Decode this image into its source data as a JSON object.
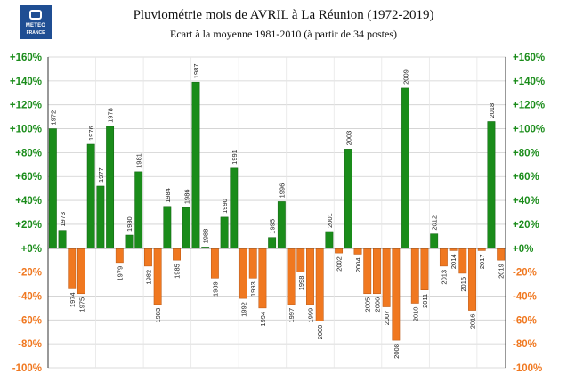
{
  "logo": {
    "line1": "METEO",
    "line2": "FRANCE"
  },
  "colors": {
    "positive": "#1a8c1a",
    "negative": "#f07820",
    "grid": "#cfcfcf",
    "left_axis_text": "#1a8c1a",
    "right_axis_text": "#f07820"
  },
  "chart_data": {
    "type": "bar",
    "title": "Pluviométrie mois de AVRIL à La Réunion (1972-2019)",
    "subtitle": "Ecart à la moyenne 1981-2010 (à partir de 34 postes)",
    "ylim": [
      -100,
      160
    ],
    "yticks": [
      "+160%",
      "+140%",
      "+120%",
      "+100%",
      "+80%",
      "+60%",
      "+40%",
      "+20%",
      "+0%",
      "-20%",
      "-40%",
      "-60%",
      "-80%",
      "-100%"
    ],
    "grid": true,
    "categories": [
      "1972",
      "1973",
      "1974",
      "1975",
      "1976",
      "1977",
      "1978",
      "1979",
      "1980",
      "1981",
      "1982",
      "1983",
      "1984",
      "1985",
      "1986",
      "1987",
      "1988",
      "1989",
      "1990",
      "1991",
      "1992",
      "1993",
      "1994",
      "1995",
      "1996",
      "1997",
      "1998",
      "1999",
      "2000",
      "2001",
      "2002",
      "2003",
      "2004",
      "2005",
      "2006",
      "2007",
      "2008",
      "2009",
      "2010",
      "2011",
      "2012",
      "2013",
      "2014",
      "2015",
      "2016",
      "2017",
      "2018",
      "2019"
    ],
    "values": [
      100,
      15,
      -34,
      -38,
      87,
      52,
      102,
      -12,
      11,
      64,
      -15,
      -47,
      35,
      -10,
      34,
      139,
      1,
      -25,
      26,
      67,
      -42,
      -25,
      -50,
      9,
      39,
      -47,
      -20,
      -47,
      -61,
      14,
      -4,
      83,
      -5,
      -38,
      -38,
      -49,
      -77,
      134,
      -46,
      -35,
      12,
      -15,
      -2,
      -21,
      -52,
      -2,
      106,
      -10
    ]
  }
}
